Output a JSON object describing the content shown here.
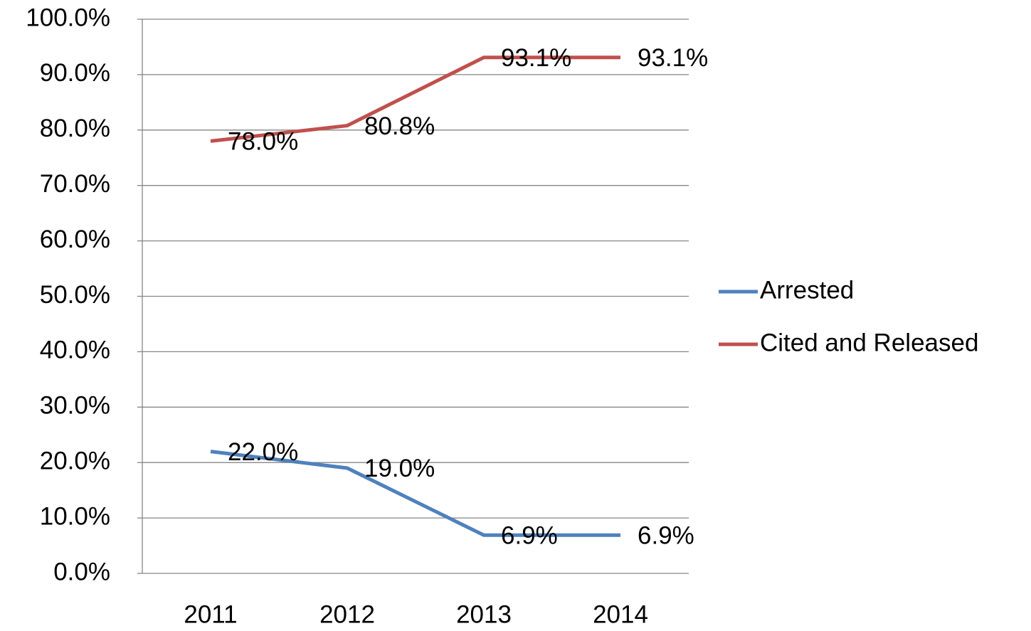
{
  "chart_data": {
    "type": "line",
    "categories": [
      "2011",
      "2012",
      "2013",
      "2014"
    ],
    "series": [
      {
        "name": "Arrested",
        "color": "#4f81bd",
        "values": [
          22.0,
          19.0,
          6.9,
          6.9
        ],
        "value_labels": [
          "22.0%",
          "19.0%",
          "6.9%",
          "6.9%"
        ]
      },
      {
        "name": "Cited and Released",
        "color": "#c0504d",
        "values": [
          78.0,
          80.8,
          93.1,
          93.1
        ],
        "value_labels": [
          "78.0%",
          "80.8%",
          "93.1%",
          "93.1%"
        ]
      }
    ],
    "ylim": [
      0,
      100
    ],
    "yticks": [
      {
        "value": 0,
        "label": "0.0%"
      },
      {
        "value": 10,
        "label": "10.0%"
      },
      {
        "value": 20,
        "label": "20.0%"
      },
      {
        "value": 30,
        "label": "30.0%"
      },
      {
        "value": 40,
        "label": "40.0%"
      },
      {
        "value": 50,
        "label": "50.0%"
      },
      {
        "value": 60,
        "label": "60.0%"
      },
      {
        "value": 70,
        "label": "70.0%"
      },
      {
        "value": 80,
        "label": "80.0%"
      },
      {
        "value": 90,
        "label": "90.0%"
      },
      {
        "value": 100,
        "label": "100.0%"
      }
    ],
    "grid": true,
    "legend": "right"
  }
}
